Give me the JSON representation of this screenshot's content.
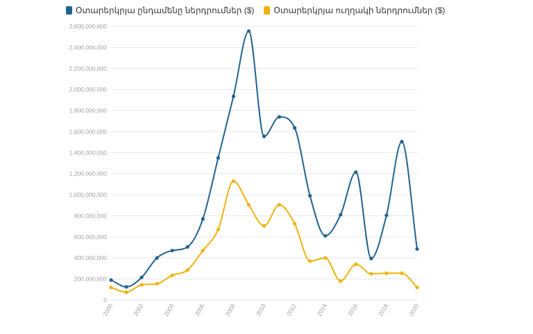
{
  "chart_data": {
    "type": "line",
    "title": "",
    "xlabel": "",
    "ylabel": "",
    "x": [
      2000,
      2001,
      2002,
      2003,
      2004,
      2005,
      2006,
      2007,
      2008,
      2009,
      2010,
      2011,
      2012,
      2013,
      2014,
      2015,
      2016,
      2017,
      2018,
      2019,
      2020
    ],
    "ylim": [
      0,
      2600000000
    ],
    "yticks": [
      0,
      200000000,
      400000000,
      600000000,
      800000000,
      1000000000,
      1200000000,
      1400000000,
      1600000000,
      1800000000,
      2000000000,
      2200000000,
      2400000000,
      2600000000
    ],
    "ytick_labels": [
      "0",
      "200,000,000",
      "400,000,000",
      "600,000,000",
      "800,000,000",
      "1,000,000,000",
      "1,200,000,000",
      "1,400,000,000",
      "1,600,000,000",
      "1,800,000,000",
      "2,000,000,000",
      "2,200,000,000",
      "2,400,000,000",
      "2,600,000,000"
    ],
    "xtick_labels": [
      "2000",
      "2002",
      "2004",
      "2006",
      "2008",
      "2010",
      "2012",
      "2014",
      "2016",
      "2018",
      "2020"
    ],
    "xtick_values": [
      2000,
      2002,
      2004,
      2006,
      2008,
      2010,
      2012,
      2014,
      2016,
      2018,
      2020
    ],
    "grid": true,
    "legend_position": "top-left",
    "series": [
      {
        "name": "Օտարերկրյա ընդամենը ներդրումներ ($)",
        "color": "#1f6391",
        "values": [
          190000000,
          125000000,
          215000000,
          400000000,
          470000000,
          505000000,
          770000000,
          1350000000,
          1935000000,
          2555000000,
          1555000000,
          1740000000,
          1635000000,
          990000000,
          610000000,
          810000000,
          1215000000,
          395000000,
          805000000,
          1505000000,
          485000000
        ]
      },
      {
        "name": "Օտարերկրյա ուղղակի ներդրումներ ($)",
        "color": "#f0b30a",
        "values": [
          120000000,
          75000000,
          145000000,
          155000000,
          235000000,
          285000000,
          470000000,
          670000000,
          1130000000,
          905000000,
          705000000,
          905000000,
          725000000,
          370000000,
          400000000,
          180000000,
          340000000,
          250000000,
          255000000,
          255000000,
          120000000
        ]
      }
    ]
  }
}
